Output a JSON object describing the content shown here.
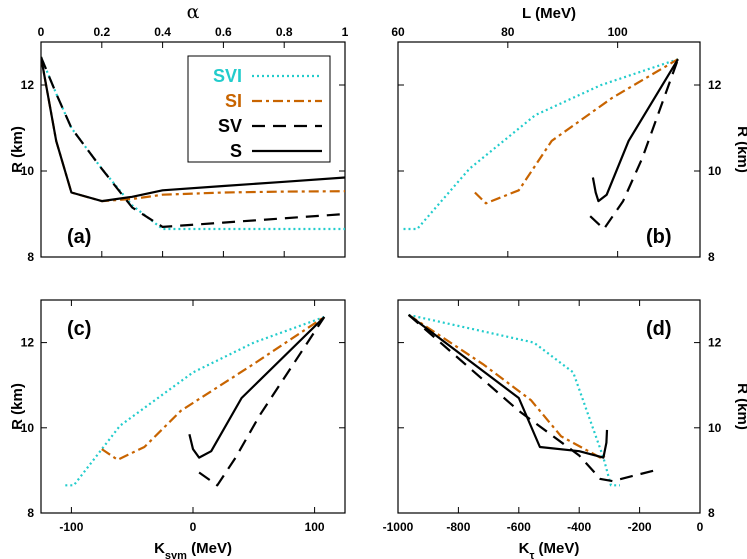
{
  "chart_data": [
    {
      "type": "line",
      "panel_label": "(a)",
      "xlabel": "α",
      "x_axis_position": "top",
      "ylabel": "R (km)",
      "y_axis_position": "left",
      "xlim": [
        0,
        1
      ],
      "ylim": [
        8,
        13
      ],
      "xticks": [
        0,
        0.2,
        0.4,
        0.6,
        0.8,
        1
      ],
      "xtick_labels": [
        "0",
        "0.2",
        "0.4",
        "0.6",
        "0.8",
        "1"
      ],
      "yticks": [
        8,
        10,
        12
      ],
      "ytick_labels": [
        "8",
        "10",
        "12"
      ],
      "legend_position": "top-right",
      "series": [
        {
          "name": "SVI",
          "color": "#22cccc",
          "dash": "dotted",
          "x": [
            0,
            0.05,
            0.1,
            0.2,
            0.3,
            0.4,
            0.6,
            0.8,
            1.0
          ],
          "y": [
            12.65,
            11.8,
            11.0,
            10.05,
            9.2,
            8.65,
            8.65,
            8.65,
            8.65
          ]
        },
        {
          "name": "SI",
          "color": "#c86400",
          "dash": "dashdot",
          "x": [
            0,
            0.05,
            0.1,
            0.2,
            0.3,
            0.4,
            0.6,
            0.8,
            1.0
          ],
          "y": [
            12.65,
            10.7,
            9.5,
            9.3,
            9.35,
            9.45,
            9.5,
            9.52,
            9.53
          ]
        },
        {
          "name": "SV",
          "color": "#000000",
          "dash": "dashed",
          "x": [
            0,
            0.05,
            0.1,
            0.2,
            0.3,
            0.4,
            0.6,
            0.8,
            1.0
          ],
          "y": [
            12.65,
            11.8,
            11.0,
            10.05,
            9.15,
            8.7,
            8.8,
            8.9,
            9.0
          ]
        },
        {
          "name": "S",
          "color": "#000000",
          "dash": "solid",
          "x": [
            0,
            0.05,
            0.1,
            0.2,
            0.3,
            0.4,
            0.6,
            0.8,
            1.0
          ],
          "y": [
            12.65,
            10.7,
            9.5,
            9.3,
            9.4,
            9.55,
            9.65,
            9.75,
            9.85
          ]
        }
      ]
    },
    {
      "type": "line",
      "panel_label": "(b)",
      "xlabel": "L (MeV)",
      "x_axis_position": "top",
      "ylabel": "R (km)",
      "y_axis_position": "right",
      "xlim": [
        60,
        115
      ],
      "ylim": [
        8,
        13
      ],
      "xticks": [
        60,
        80,
        100
      ],
      "xtick_labels": [
        "60",
        "80",
        "100"
      ],
      "yticks": [
        8,
        10,
        12
      ],
      "ytick_labels": [
        "8",
        "10",
        "12"
      ],
      "series": [
        {
          "name": "SVI",
          "color": "#22cccc",
          "dash": "dotted",
          "x": [
            61,
            63.5,
            73,
            85,
            97,
            111
          ],
          "y": [
            8.65,
            8.65,
            10.05,
            11.3,
            12.0,
            12.6
          ]
        },
        {
          "name": "SI",
          "color": "#c86400",
          "dash": "dashdot",
          "x": [
            74,
            76,
            82,
            88,
            99,
            111
          ],
          "y": [
            9.5,
            9.25,
            9.55,
            10.7,
            11.7,
            12.6
          ]
        },
        {
          "name": "SV",
          "color": "#000000",
          "dash": "dashed",
          "x": [
            95,
            97.5,
            101,
            104.5,
            111
          ],
          "y": [
            8.95,
            8.65,
            9.3,
            10.3,
            12.6
          ]
        },
        {
          "name": "S",
          "color": "#000000",
          "dash": "solid",
          "x": [
            95.5,
            96,
            96.5,
            98,
            102,
            111
          ],
          "y": [
            9.85,
            9.5,
            9.3,
            9.45,
            10.7,
            12.6
          ]
        }
      ]
    },
    {
      "type": "line",
      "panel_label": "(c)",
      "xlabel": "K_sym  (MeV)",
      "x_axis_position": "bottom",
      "ylabel": "R (km)",
      "y_axis_position": "left",
      "xlim": [
        -125,
        125
      ],
      "ylim": [
        8,
        13
      ],
      "xticks": [
        -100,
        0,
        100
      ],
      "xtick_labels": [
        "-100",
        "0",
        "100"
      ],
      "yticks": [
        8,
        10,
        12
      ],
      "ytick_labels": [
        "8",
        "10",
        "12"
      ],
      "series": [
        {
          "name": "SVI",
          "color": "#22cccc",
          "dash": "dotted",
          "x": [
            -105,
            -98,
            -60,
            0,
            50,
            108
          ],
          "y": [
            8.65,
            8.65,
            10.05,
            11.3,
            12.0,
            12.6
          ]
        },
        {
          "name": "SI",
          "color": "#c86400",
          "dash": "dashdot",
          "x": [
            -75,
            -62,
            -40,
            -10,
            50,
            108
          ],
          "y": [
            9.5,
            9.25,
            9.55,
            10.4,
            11.5,
            12.6
          ]
        },
        {
          "name": "SV",
          "color": "#000000",
          "dash": "dashed",
          "x": [
            5,
            20,
            35,
            55,
            108
          ],
          "y": [
            8.95,
            8.65,
            9.3,
            10.3,
            12.6
          ]
        },
        {
          "name": "S",
          "color": "#000000",
          "dash": "solid",
          "x": [
            -3,
            0,
            5,
            15,
            40,
            108
          ],
          "y": [
            9.85,
            9.5,
            9.3,
            9.45,
            10.7,
            12.6
          ]
        }
      ]
    },
    {
      "type": "line",
      "panel_label": "(d)",
      "xlabel": "K_τ  (MeV)",
      "x_axis_position": "bottom",
      "ylabel": "R (km)",
      "y_axis_position": "right",
      "xlim": [
        -1000,
        0
      ],
      "ylim": [
        8,
        13
      ],
      "xticks": [
        -1000,
        -800,
        -600,
        -400,
        -200,
        0
      ],
      "xtick_labels": [
        "-1000",
        "-800",
        "-600",
        "-400",
        "-200",
        "0"
      ],
      "yticks": [
        8,
        10,
        12
      ],
      "ytick_labels": [
        "8",
        "10",
        "12"
      ],
      "series": [
        {
          "name": "SVI",
          "color": "#22cccc",
          "dash": "dotted",
          "x": [
            -965,
            -550,
            -420,
            -320,
            -295,
            -265
          ],
          "y": [
            12.65,
            12.0,
            11.3,
            9.3,
            8.65,
            8.65
          ]
        },
        {
          "name": "SI",
          "color": "#c86400",
          "dash": "dashdot",
          "x": [
            -965,
            -720,
            -560,
            -460,
            -330,
            -315
          ],
          "y": [
            12.65,
            11.5,
            10.65,
            9.8,
            9.3,
            9.35
          ]
        },
        {
          "name": "SV",
          "color": "#000000",
          "dash": "dashed",
          "x": [
            -965,
            -600,
            -400,
            -330,
            -290,
            -150
          ],
          "y": [
            12.65,
            10.4,
            9.35,
            8.8,
            8.75,
            9.0
          ]
        },
        {
          "name": "S",
          "color": "#000000",
          "dash": "solid",
          "x": [
            -965,
            -600,
            -530,
            -400,
            -320,
            -310,
            -308
          ],
          "y": [
            12.65,
            10.7,
            9.55,
            9.45,
            9.3,
            9.65,
            9.95
          ]
        }
      ]
    }
  ]
}
